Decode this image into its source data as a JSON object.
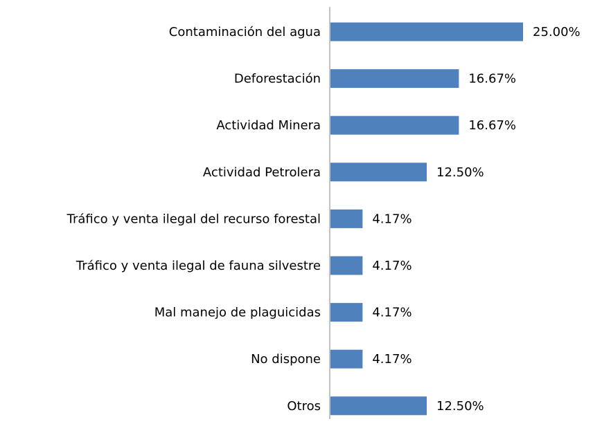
{
  "chart_data": {
    "type": "hbar",
    "categories": [
      "Contaminación del agua",
      "Deforestación",
      "Actividad Minera",
      "Actividad Petrolera",
      "Tráfico y venta ilegal del recurso forestal",
      "Tráfico y venta ilegal de fauna silvestre",
      "Mal manejo de plaguicidas",
      "No dispone",
      "Otros"
    ],
    "values": [
      25,
      16.67,
      16.67,
      12.5,
      4.17,
      4.17,
      4.17,
      4.17,
      12.5
    ],
    "value_labels": [
      "25.00%",
      "16.67%",
      "16.67%",
      "12.50%",
      "4.17%",
      "4.17%",
      "4.17%",
      "4.17%",
      "12.50%"
    ],
    "color": "#4f81bd"
  }
}
